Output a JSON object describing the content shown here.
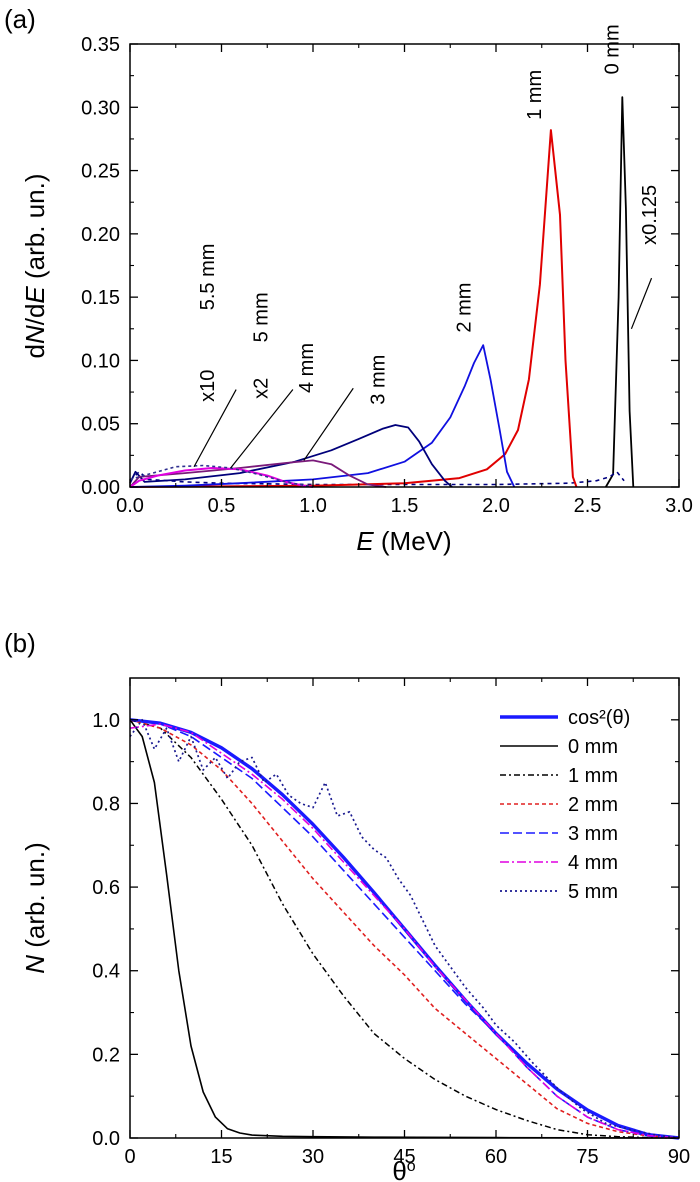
{
  "chart_data": [
    {
      "type": "line",
      "panel_label": "(a)",
      "xlabel": "E (MeV)",
      "ylabel": "dN/dE (arb. un.)",
      "xlim": [
        0,
        3.0
      ],
      "ylim": [
        0,
        0.35
      ],
      "xticks": [
        "0.0",
        "0.5",
        "1.0",
        "1.5",
        "2.0",
        "2.5",
        "3.0"
      ],
      "yticks": [
        "0.00",
        "0.05",
        "0.10",
        "0.15",
        "0.20",
        "0.25",
        "0.30",
        "0.35"
      ],
      "series": [
        {
          "color": "#000000",
          "dash": "",
          "width": 1.8,
          "x": [
            2.6,
            2.64,
            2.67,
            2.69,
            2.71,
            2.73,
            2.75
          ],
          "y": [
            0,
            0.01,
            0.15,
            0.308,
            0.22,
            0.06,
            0
          ]
        },
        {
          "color": "#000080",
          "dash": "4,4",
          "width": 1.6,
          "x": [
            0.0,
            0.05,
            0.1,
            0.3,
            0.5,
            1.0,
            1.5,
            2.0,
            2.4,
            2.55,
            2.62,
            2.66,
            2.7
          ],
          "y": [
            0.005,
            0.012,
            0.006,
            0.004,
            0.003,
            0.002,
            0.002,
            0.002,
            0.003,
            0.005,
            0.008,
            0.012,
            0.005
          ]
        },
        {
          "color": "#e00000",
          "dash": "",
          "width": 2.0,
          "x": [
            0.0,
            0.5,
            1.0,
            1.5,
            1.8,
            1.95,
            2.05,
            2.12,
            2.18,
            2.24,
            2.3,
            2.35,
            2.38,
            2.42,
            2.44
          ],
          "y": [
            0,
            0.0005,
            0.001,
            0.003,
            0.007,
            0.014,
            0.026,
            0.045,
            0.085,
            0.16,
            0.282,
            0.215,
            0.1,
            0.008,
            0
          ]
        },
        {
          "color": "#1010e0",
          "dash": "",
          "width": 1.8,
          "x": [
            0.0,
            0.3,
            0.6,
            1.0,
            1.3,
            1.5,
            1.65,
            1.75,
            1.83,
            1.88,
            1.93,
            1.97,
            2.02,
            2.06,
            2.1
          ],
          "y": [
            0,
            0.001,
            0.003,
            0.006,
            0.011,
            0.02,
            0.035,
            0.055,
            0.08,
            0.098,
            0.112,
            0.085,
            0.045,
            0.012,
            0
          ]
        },
        {
          "color": "#00007a",
          "dash": "",
          "width": 1.8,
          "x": [
            0.0,
            0.03,
            0.08,
            0.3,
            0.6,
            0.9,
            1.1,
            1.25,
            1.38,
            1.45,
            1.52,
            1.58,
            1.65,
            1.72,
            1.76
          ],
          "y": [
            0.003,
            0.012,
            0.004,
            0.006,
            0.011,
            0.02,
            0.029,
            0.038,
            0.046,
            0.049,
            0.047,
            0.036,
            0.018,
            0.005,
            0
          ]
        },
        {
          "color": "#7a1a7a",
          "dash": "",
          "width": 1.8,
          "x": [
            0.0,
            0.05,
            0.3,
            0.6,
            0.85,
            1.0,
            1.1,
            1.2,
            1.3,
            1.4
          ],
          "y": [
            0,
            0.008,
            0.011,
            0.015,
            0.019,
            0.021,
            0.018,
            0.009,
            0.002,
            0
          ]
        },
        {
          "color": "#e000e0",
          "dash": "",
          "width": 2.0,
          "x": [
            0.0,
            0.05,
            0.15,
            0.3,
            0.45,
            0.6,
            0.75,
            0.85,
            0.95,
            1.0
          ],
          "y": [
            0,
            0.005,
            0.009,
            0.013,
            0.015,
            0.014,
            0.009,
            0.004,
            0.001,
            0
          ]
        },
        {
          "color": "#303090",
          "dash": "3,3",
          "width": 1.6,
          "x": [
            0.0,
            0.1,
            0.25,
            0.4,
            0.55,
            0.7,
            0.85,
            1.0
          ],
          "y": [
            0.006,
            0.01,
            0.016,
            0.017,
            0.015,
            0.01,
            0.004,
            0
          ]
        }
      ],
      "annotations": [
        {
          "text": "0 mm",
          "x": 2.67,
          "y": 0.326,
          "rotate": -90,
          "anchor": "start"
        },
        {
          "text": "1 mm",
          "x": 2.245,
          "y": 0.29,
          "rotate": -90,
          "anchor": "start"
        },
        {
          "text": "2 mm",
          "x": 1.86,
          "y": 0.122,
          "rotate": -90,
          "anchor": "start"
        },
        {
          "text": "3 mm",
          "x": 1.39,
          "y": 0.065,
          "rotate": -90,
          "anchor": "start"
        },
        {
          "text": "4 mm",
          "x": 1.0,
          "y": 0.094,
          "rotate": -90,
          "anchor": "middle"
        },
        {
          "text": "5 mm",
          "x": 0.75,
          "y": 0.134,
          "rotate": -90,
          "anchor": "middle"
        },
        {
          "text": "x2",
          "x": 0.75,
          "y": 0.078,
          "rotate": -90,
          "anchor": "middle"
        },
        {
          "text": "5.5 mm",
          "x": 0.46,
          "y": 0.166,
          "rotate": -90,
          "anchor": "middle"
        },
        {
          "text": "x10",
          "x": 0.46,
          "y": 0.08,
          "rotate": -90,
          "anchor": "middle"
        },
        {
          "text": "x0.125",
          "x": 2.875,
          "y": 0.215,
          "rotate": -90,
          "anchor": "middle"
        }
      ],
      "leaders": [
        [
          0.35,
          0.016,
          0.58,
          0.077
        ],
        [
          0.55,
          0.015,
          0.89,
          0.077
        ],
        [
          0.95,
          0.021,
          1.22,
          0.078
        ],
        [
          2.74,
          0.125,
          2.85,
          0.165
        ]
      ]
    },
    {
      "type": "line",
      "panel_label": "(b)",
      "xlabel": "θ°",
      "ylabel": "N (arb. un.)",
      "xlim": [
        0,
        90
      ],
      "ylim": [
        0,
        1.1
      ],
      "xticks": [
        "0",
        "15",
        "30",
        "45",
        "60",
        "75",
        "90"
      ],
      "yticks": [
        "0.0",
        "0.2",
        "0.4",
        "0.6",
        "0.8",
        "1.0"
      ],
      "legend_position": "top-right",
      "series": [
        {
          "name": "cos²(θ)",
          "color": "#1a1aff",
          "dash": "",
          "width": 3.4,
          "x": [
            0,
            5,
            10,
            15,
            20,
            25,
            30,
            35,
            40,
            45,
            50,
            55,
            60,
            65,
            70,
            75,
            80,
            85,
            90
          ],
          "y": [
            1.0,
            0.992,
            0.97,
            0.933,
            0.883,
            0.821,
            0.75,
            0.671,
            0.587,
            0.5,
            0.413,
            0.329,
            0.25,
            0.179,
            0.117,
            0.067,
            0.03,
            0.008,
            0.0
          ]
        },
        {
          "name": "0 mm",
          "color": "#000000",
          "dash": "",
          "width": 1.6,
          "x": [
            0,
            2,
            4,
            6,
            8,
            10,
            12,
            14,
            16,
            18,
            20,
            25,
            30,
            40,
            60,
            90
          ],
          "y": [
            1.0,
            0.96,
            0.85,
            0.63,
            0.4,
            0.22,
            0.11,
            0.05,
            0.022,
            0.012,
            0.007,
            0.004,
            0.003,
            0.002,
            0.001,
            0.0
          ]
        },
        {
          "name": "1 mm",
          "color": "#000000",
          "dash": "6,3,2,3",
          "width": 1.5,
          "x": [
            0,
            5,
            10,
            15,
            20,
            25,
            30,
            35,
            40,
            45,
            50,
            55,
            60,
            65,
            70,
            75,
            80,
            85,
            90
          ],
          "y": [
            1.0,
            0.98,
            0.91,
            0.81,
            0.7,
            0.56,
            0.44,
            0.34,
            0.25,
            0.19,
            0.14,
            0.1,
            0.068,
            0.042,
            0.02,
            0.008,
            0.003,
            0.001,
            0.0
          ]
        },
        {
          "name": "2 mm",
          "color": "#e02020",
          "dash": "4,3",
          "width": 1.6,
          "x": [
            0,
            5,
            10,
            15,
            20,
            25,
            30,
            35,
            40,
            45,
            50,
            55,
            60,
            65,
            70,
            75,
            80,
            85,
            90
          ],
          "y": [
            1.0,
            0.98,
            0.94,
            0.88,
            0.8,
            0.71,
            0.62,
            0.54,
            0.46,
            0.39,
            0.31,
            0.25,
            0.19,
            0.13,
            0.07,
            0.035,
            0.015,
            0.005,
            0.0
          ]
        },
        {
          "name": "3 mm",
          "color": "#1a1aff",
          "dash": "9,4",
          "width": 1.6,
          "x": [
            0,
            5,
            10,
            15,
            20,
            25,
            30,
            35,
            40,
            45,
            50,
            55,
            60,
            65,
            70,
            75,
            80,
            85,
            90
          ],
          "y": [
            1.0,
            0.99,
            0.96,
            0.91,
            0.86,
            0.79,
            0.72,
            0.64,
            0.56,
            0.48,
            0.4,
            0.32,
            0.25,
            0.17,
            0.1,
            0.05,
            0.02,
            0.005,
            0.0
          ]
        },
        {
          "name": "4 mm",
          "color": "#e000e0",
          "dash": "9,3,2,3",
          "width": 1.6,
          "x": [
            0,
            5,
            10,
            15,
            20,
            25,
            30,
            35,
            40,
            45,
            50,
            55,
            60,
            65,
            70,
            75,
            80,
            85,
            90
          ],
          "y": [
            0.98,
            0.99,
            0.97,
            0.92,
            0.87,
            0.81,
            0.74,
            0.66,
            0.58,
            0.5,
            0.41,
            0.33,
            0.25,
            0.17,
            0.1,
            0.05,
            0.02,
            0.006,
            0.0
          ]
        },
        {
          "name": "5 mm",
          "color": "#1a1a90",
          "dash": "2,3",
          "width": 1.7,
          "x": [
            0,
            2,
            4,
            6,
            8,
            10,
            12,
            14,
            16,
            18,
            20,
            22,
            24,
            26,
            28,
            30,
            32,
            34,
            36,
            38,
            40,
            42,
            44,
            46,
            48,
            50,
            52,
            55,
            58,
            60,
            63,
            66,
            70,
            74,
            78,
            82,
            86,
            90
          ],
          "y": [
            0.96,
            1.0,
            0.93,
            0.98,
            0.9,
            0.96,
            0.88,
            0.91,
            0.86,
            0.9,
            0.91,
            0.85,
            0.87,
            0.82,
            0.8,
            0.79,
            0.85,
            0.77,
            0.78,
            0.72,
            0.69,
            0.67,
            0.62,
            0.58,
            0.52,
            0.46,
            0.42,
            0.36,
            0.31,
            0.27,
            0.23,
            0.18,
            0.12,
            0.07,
            0.035,
            0.02,
            0.008,
            0.0
          ]
        }
      ]
    }
  ]
}
